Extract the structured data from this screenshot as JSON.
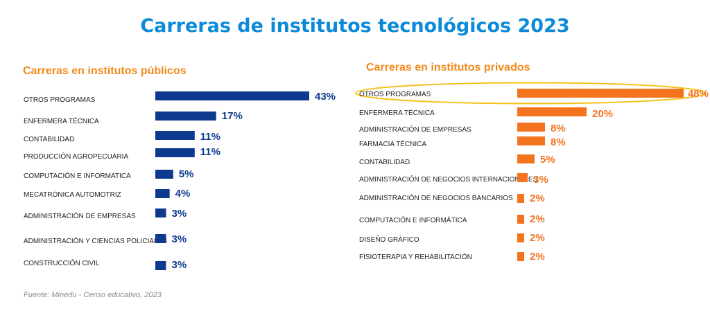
{
  "title": "Carreras de institutos tecnológicos 2023",
  "source": "Fuente: Minedu - Censo educativo, 2023",
  "colors": {
    "title": "#0a8ad8",
    "subtitle": "#f28a1c",
    "public_bar": "#0d3a8e",
    "private_bar": "#f4731f",
    "highlight": "#f5c21b"
  },
  "chart_data": [
    {
      "type": "bar",
      "orientation": "horizontal",
      "title": "Carreras en institutos públicos",
      "categories": [
        "OTROS PROGRAMAS",
        "ENFERMERA TÉCNICA",
        "CONTABILIDAD",
        "PRODUCCIÓN AGROPECUARIA",
        "COMPUTACIÓN E INFORMATICA",
        "MECATRÓNICA AUTOMOTRIZ",
        "ADMINISTRACIÓN DE EMPRESAS",
        "ADMINISTRACIÓN Y CIENCIAS POLICIALES",
        "CONSTRUCCIÓN CIVIL"
      ],
      "values": [
        43,
        17,
        11,
        11,
        5,
        4,
        3,
        3,
        3
      ],
      "value_labels": [
        "43%",
        "17%",
        "11%",
        "11%",
        "5%",
        "4%",
        "3%",
        "3%",
        "3%"
      ],
      "unit": "%",
      "xlim": [
        0,
        43
      ],
      "grid": false
    },
    {
      "type": "bar",
      "orientation": "horizontal",
      "title": "Carreras en institutos privados",
      "categories": [
        "OTROS PROGRAMAS",
        "ENFERMERA TÉCNICA",
        "ADMINISTRACIÓN DE EMPRESAS",
        "FARMACIA TÉCNICA",
        "CONTABILIDAD",
        "ADMINISTRACIÓN DE NEGOCIOS INTERNACIONALES",
        "ADMINISTRACIÓN DE NEGOCIOS BANCARIOS",
        "COMPUTACIÓN E INFORMÁTICA",
        "DISEÑO GRÁFICO",
        "FISIOTERAPIA Y REHABILITACIÓN"
      ],
      "values": [
        48,
        20,
        8,
        8,
        5,
        3,
        2,
        2,
        2,
        2
      ],
      "value_labels": [
        "48%",
        "20%",
        "8%",
        "8%",
        "5%",
        "3%",
        "2%",
        "2%",
        "2%",
        "2%"
      ],
      "unit": "%",
      "xlim": [
        0,
        48
      ],
      "grid": false,
      "highlighted_category": "OTROS PROGRAMAS"
    }
  ]
}
